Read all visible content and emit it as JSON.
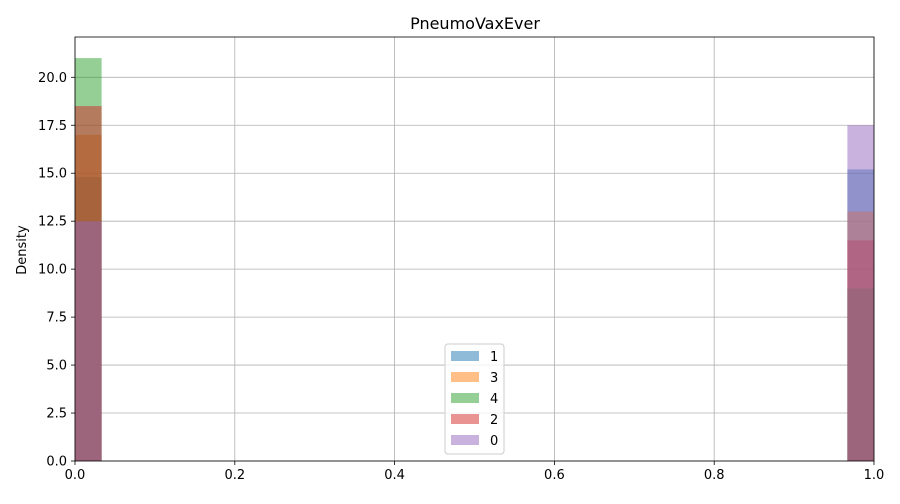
{
  "chart_data": {
    "type": "bar",
    "title": "PneumoVaxEver",
    "xlabel": "",
    "ylabel": "Density",
    "xlim": [
      0,
      1
    ],
    "ylim": [
      0,
      22.1
    ],
    "x_ticks": [
      "0.0",
      "0.2",
      "0.4",
      "0.6",
      "0.8",
      "1.0"
    ],
    "y_ticks": [
      "0.0",
      "2.5",
      "5.0",
      "7.5",
      "10.0",
      "12.5",
      "15.0",
      "17.5",
      "20.0"
    ],
    "grid": true,
    "bin_width": 0.0333,
    "bins": [
      0.0,
      0.9667
    ],
    "series": [
      {
        "name": "1",
        "color": "#1f77b4",
        "values": [
          14.8,
          15.2
        ]
      },
      {
        "name": "3",
        "color": "#ff7f0e",
        "values": [
          17.0,
          13.0
        ]
      },
      {
        "name": "4",
        "color": "#2ca02c",
        "values": [
          21.0,
          9.0
        ]
      },
      {
        "name": "2",
        "color": "#d62728",
        "values": [
          18.5,
          11.5
        ]
      },
      {
        "name": "0",
        "color": "#9467bd",
        "values": [
          12.5,
          17.5
        ]
      }
    ],
    "legend_position": "lower-center",
    "opacity": 0.5
  }
}
